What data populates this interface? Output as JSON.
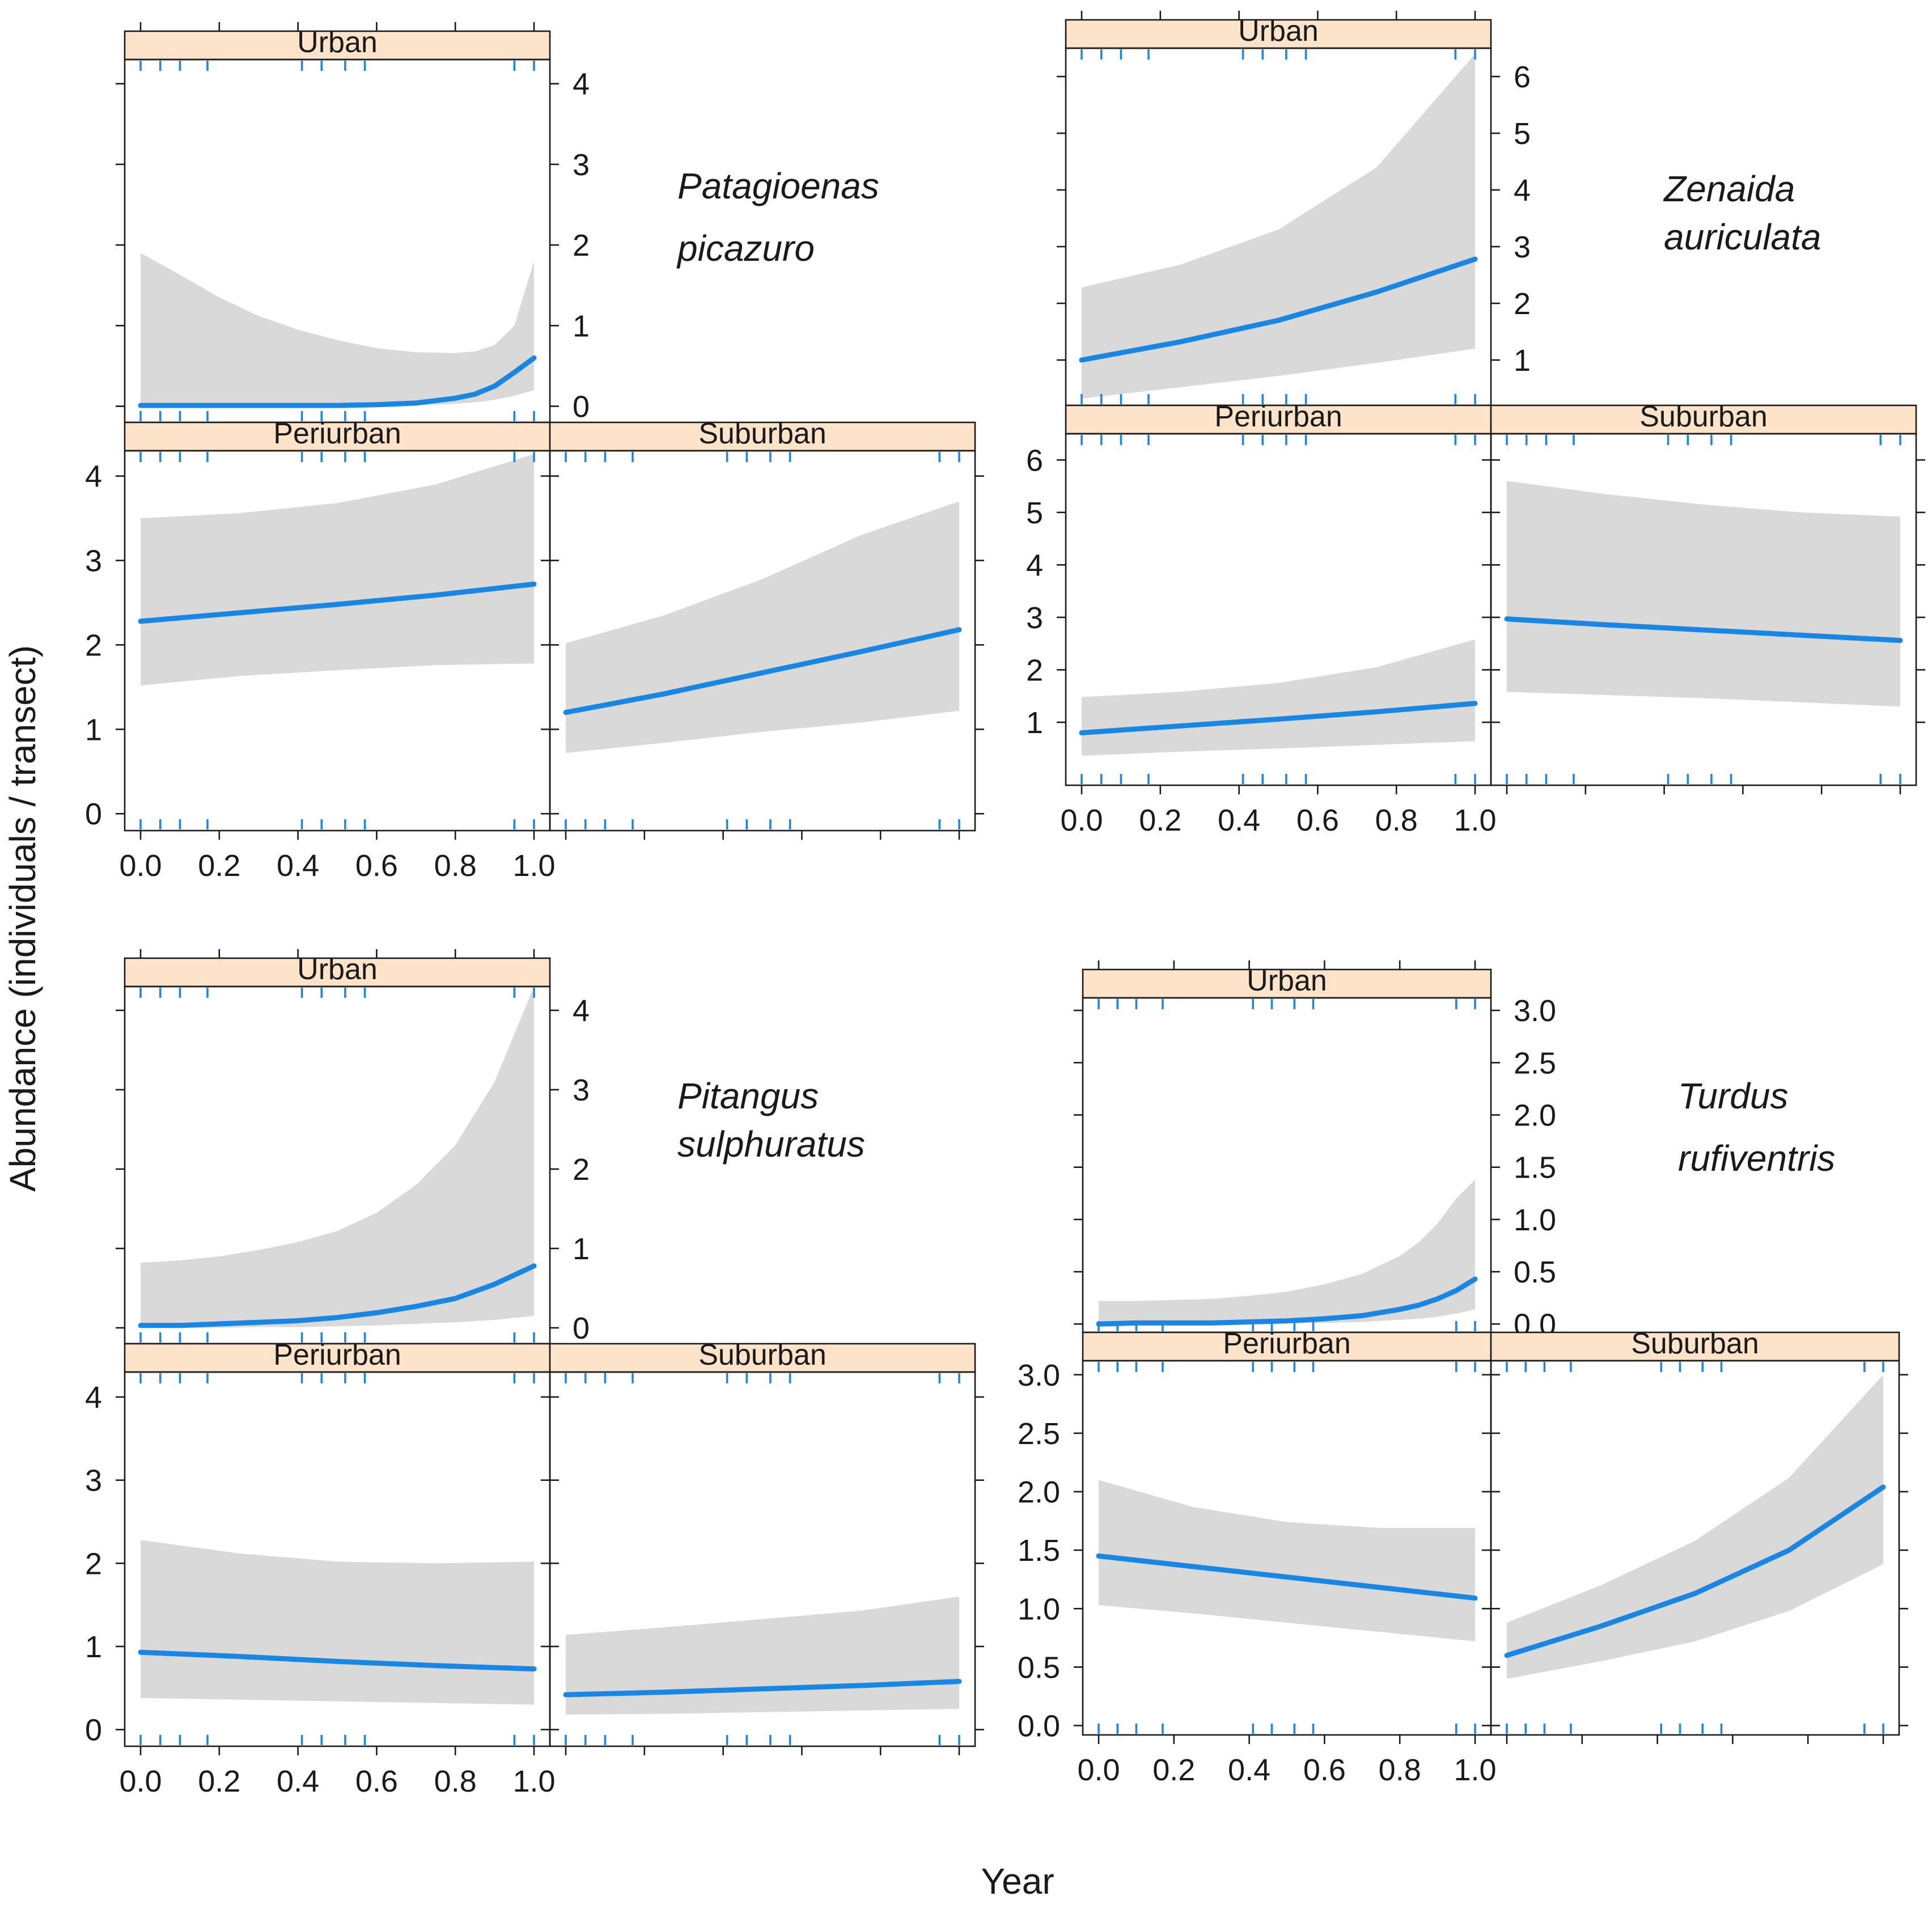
{
  "figure": {
    "ylabel": "Abundance (individuals / transect)",
    "xlabel": "Year"
  },
  "chart_data": [
    {
      "type": "line",
      "species_line1": "Patagioenas",
      "species_line2": "picazuro",
      "xlim": [
        0,
        1
      ],
      "xticks": [
        "0.0",
        "0.2",
        "0.4",
        "0.6",
        "0.8",
        "1.0"
      ],
      "rug": [
        0,
        0.05,
        0.1,
        0.17,
        0.41,
        0.46,
        0.52,
        0.57,
        0.95,
        1.0
      ],
      "panels": [
        {
          "strip": "Urban",
          "ylim": [
            -0.2,
            4.3
          ],
          "yticks": [
            "0",
            "1",
            "2",
            "3",
            "4"
          ],
          "x": [
            0,
            0.1,
            0.2,
            0.3,
            0.4,
            0.5,
            0.6,
            0.7,
            0.8,
            0.85,
            0.9,
            0.95,
            1.0
          ],
          "fit": [
            0.01,
            0.01,
            0.01,
            0.01,
            0.01,
            0.01,
            0.02,
            0.04,
            0.1,
            0.15,
            0.25,
            0.42,
            0.6
          ],
          "lower": [
            0,
            0,
            0,
            0,
            0,
            0,
            0,
            0.01,
            0.03,
            0.05,
            0.08,
            0.13,
            0.2
          ],
          "upper": [
            1.9,
            1.63,
            1.35,
            1.12,
            0.95,
            0.82,
            0.72,
            0.67,
            0.66,
            0.68,
            0.76,
            1.0,
            1.8
          ]
        },
        {
          "strip": "Periurban",
          "ylim": [
            -0.2,
            4.3
          ],
          "yticks": [
            "0",
            "1",
            "2",
            "3",
            "4"
          ],
          "x": [
            0,
            0.25,
            0.5,
            0.75,
            1.0
          ],
          "fit": [
            2.28,
            2.38,
            2.48,
            2.59,
            2.72
          ],
          "lower": [
            1.52,
            1.63,
            1.7,
            1.76,
            1.78
          ],
          "upper": [
            3.5,
            3.56,
            3.68,
            3.9,
            4.26
          ]
        },
        {
          "strip": "Suburban",
          "ylim": [
            -0.2,
            4.3
          ],
          "yticks": [
            "0",
            "1",
            "2",
            "3",
            "4"
          ],
          "x": [
            0,
            0.25,
            0.5,
            0.75,
            1.0
          ],
          "fit": [
            1.2,
            1.42,
            1.67,
            1.92,
            2.18
          ],
          "lower": [
            0.72,
            0.84,
            0.97,
            1.08,
            1.22
          ],
          "upper": [
            2.02,
            2.35,
            2.78,
            3.3,
            3.7
          ]
        }
      ]
    },
    {
      "type": "line",
      "species_line1": "Zenaida",
      "species_line2": "auriculata",
      "xlim": [
        0,
        1
      ],
      "xticks": [
        "0.0",
        "0.2",
        "0.4",
        "0.6",
        "0.8",
        "1.0"
      ],
      "rug": [
        0,
        0.05,
        0.1,
        0.17,
        0.41,
        0.46,
        0.52,
        0.57,
        0.95,
        1.0
      ],
      "panels": [
        {
          "strip": "Urban",
          "ylim": [
            0.2,
            6.5
          ],
          "yticks": [
            "1",
            "2",
            "3",
            "4",
            "5",
            "6"
          ],
          "x": [
            0,
            0.25,
            0.5,
            0.75,
            1.0
          ],
          "fit": [
            1.0,
            1.32,
            1.7,
            2.2,
            2.78
          ],
          "lower": [
            0.32,
            0.52,
            0.72,
            0.95,
            1.2
          ],
          "upper": [
            2.28,
            2.68,
            3.3,
            4.4,
            6.4
          ]
        },
        {
          "strip": "Periurban",
          "ylim": [
            -0.2,
            6.5
          ],
          "yticks": [
            "1",
            "2",
            "3",
            "4",
            "5",
            "6"
          ],
          "x": [
            0,
            0.25,
            0.5,
            0.75,
            1.0
          ],
          "fit": [
            0.8,
            0.93,
            1.06,
            1.2,
            1.36
          ],
          "lower": [
            0.36,
            0.44,
            0.5,
            0.57,
            0.64
          ],
          "upper": [
            1.48,
            1.58,
            1.75,
            2.05,
            2.58
          ]
        },
        {
          "strip": "Suburban",
          "ylim": [
            -0.2,
            6.5
          ],
          "yticks": [
            "1",
            "2",
            "3",
            "4",
            "5",
            "6"
          ],
          "x": [
            0,
            0.25,
            0.5,
            0.75,
            1.0
          ],
          "fit": [
            2.97,
            2.86,
            2.76,
            2.66,
            2.56
          ],
          "lower": [
            1.58,
            1.52,
            1.46,
            1.38,
            1.3
          ],
          "upper": [
            5.6,
            5.35,
            5.15,
            5.0,
            4.92
          ]
        }
      ]
    },
    {
      "type": "line",
      "species_line1": "Pitangus",
      "species_line2": "sulphuratus",
      "xlim": [
        0,
        1
      ],
      "xticks": [
        "0.0",
        "0.2",
        "0.4",
        "0.6",
        "0.8",
        "1.0"
      ],
      "rug": [
        0,
        0.05,
        0.1,
        0.17,
        0.41,
        0.46,
        0.52,
        0.57,
        0.95,
        1.0
      ],
      "panels": [
        {
          "strip": "Urban",
          "ylim": [
            -0.2,
            4.3
          ],
          "yticks": [
            "0",
            "1",
            "2",
            "3",
            "4"
          ],
          "x": [
            0,
            0.1,
            0.2,
            0.3,
            0.4,
            0.5,
            0.6,
            0.7,
            0.8,
            0.9,
            1.0
          ],
          "fit": [
            0.03,
            0.03,
            0.05,
            0.07,
            0.09,
            0.13,
            0.19,
            0.27,
            0.37,
            0.55,
            0.78
          ],
          "lower": [
            0,
            0,
            0,
            0.01,
            0.01,
            0.02,
            0.03,
            0.05,
            0.07,
            0.1,
            0.15
          ],
          "upper": [
            0.82,
            0.85,
            0.9,
            0.98,
            1.08,
            1.22,
            1.45,
            1.8,
            2.3,
            3.1,
            4.3
          ]
        },
        {
          "strip": "Periurban",
          "ylim": [
            -0.2,
            4.3
          ],
          "yticks": [
            "0",
            "1",
            "2",
            "3",
            "4"
          ],
          "x": [
            0,
            0.25,
            0.5,
            0.75,
            1.0
          ],
          "fit": [
            0.93,
            0.88,
            0.82,
            0.77,
            0.73
          ],
          "lower": [
            0.38,
            0.36,
            0.34,
            0.32,
            0.3
          ],
          "upper": [
            2.28,
            2.12,
            2.02,
            2.0,
            2.02
          ]
        },
        {
          "strip": "Suburban",
          "ylim": [
            -0.2,
            4.3
          ],
          "yticks": [
            "0",
            "1",
            "2",
            "3",
            "4"
          ],
          "x": [
            0,
            0.25,
            0.5,
            0.75,
            1.0
          ],
          "fit": [
            0.42,
            0.45,
            0.49,
            0.53,
            0.58
          ],
          "lower": [
            0.18,
            0.19,
            0.21,
            0.23,
            0.25
          ],
          "upper": [
            1.14,
            1.23,
            1.33,
            1.43,
            1.6
          ]
        }
      ]
    },
    {
      "type": "line",
      "species_line1": "Turdus",
      "species_line2": "rufiventris",
      "xlim": [
        0,
        1
      ],
      "xticks": [
        "0.0",
        "0.2",
        "0.4",
        "0.6",
        "0.8",
        "1.0"
      ],
      "rug": [
        0,
        0.05,
        0.1,
        0.17,
        0.41,
        0.46,
        0.52,
        0.57,
        0.95,
        1.0
      ],
      "panels": [
        {
          "strip": "Urban",
          "ylim": [
            -0.08,
            3.12
          ],
          "yticks": [
            "0.0",
            "0.5",
            "1.0",
            "1.5",
            "2.0",
            "2.5",
            "3.0"
          ],
          "x": [
            0,
            0.1,
            0.2,
            0.3,
            0.4,
            0.5,
            0.6,
            0.7,
            0.8,
            0.85,
            0.9,
            0.95,
            1.0
          ],
          "fit": [
            0.0,
            0.01,
            0.01,
            0.01,
            0.02,
            0.03,
            0.05,
            0.08,
            0.14,
            0.18,
            0.24,
            0.32,
            0.43
          ],
          "lower": [
            0,
            0,
            0,
            0,
            0,
            0.01,
            0.01,
            0.02,
            0.04,
            0.05,
            0.07,
            0.1,
            0.14
          ],
          "upper": [
            0.22,
            0.22,
            0.23,
            0.24,
            0.27,
            0.31,
            0.38,
            0.48,
            0.65,
            0.78,
            0.96,
            1.2,
            1.38
          ]
        },
        {
          "strip": "Periurban",
          "ylim": [
            -0.08,
            3.12
          ],
          "yticks": [
            "0.0",
            "0.5",
            "1.0",
            "1.5",
            "2.0",
            "2.5",
            "3.0"
          ],
          "x": [
            0,
            0.25,
            0.5,
            0.75,
            1.0
          ],
          "fit": [
            1.45,
            1.36,
            1.27,
            1.18,
            1.09
          ],
          "lower": [
            1.03,
            0.96,
            0.88,
            0.8,
            0.72
          ],
          "upper": [
            2.1,
            1.87,
            1.74,
            1.69,
            1.69
          ]
        },
        {
          "strip": "Suburban",
          "ylim": [
            -0.08,
            3.12
          ],
          "yticks": [
            "0.0",
            "0.5",
            "1.0",
            "1.5",
            "2.0",
            "2.5",
            "3.0"
          ],
          "x": [
            0,
            0.25,
            0.5,
            0.75,
            1.0
          ],
          "fit": [
            0.6,
            0.85,
            1.13,
            1.5,
            2.04
          ],
          "lower": [
            0.4,
            0.55,
            0.72,
            0.98,
            1.38
          ],
          "upper": [
            0.88,
            1.2,
            1.58,
            2.12,
            3.0
          ]
        }
      ]
    }
  ]
}
